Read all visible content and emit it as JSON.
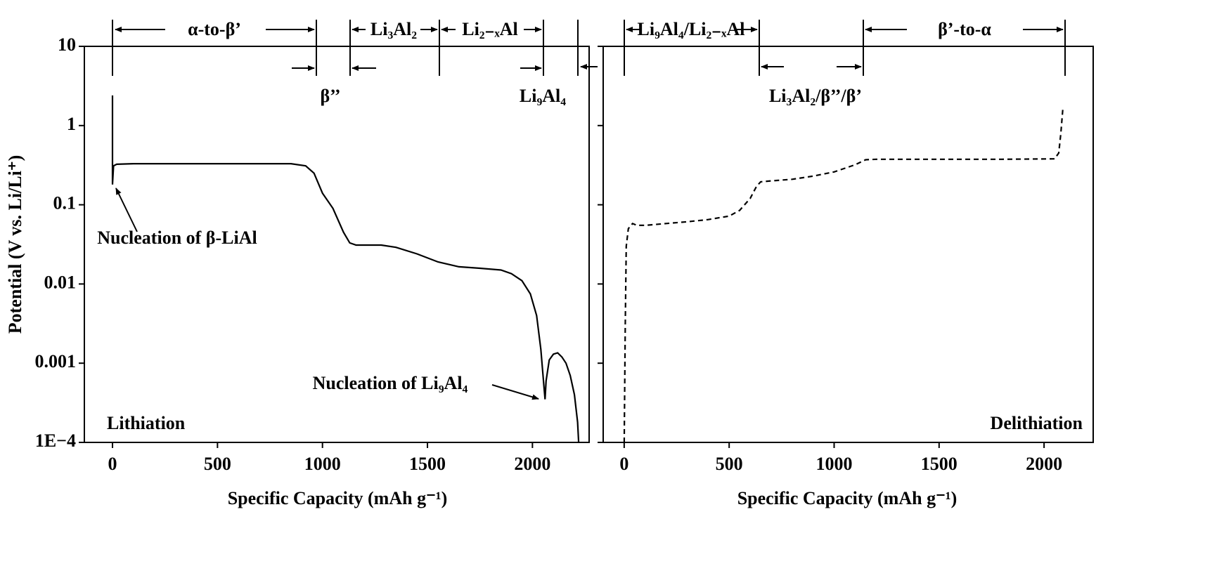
{
  "chart_data": [
    {
      "type": "line",
      "yscale": "log",
      "color": "#000000",
      "dashed": false,
      "y_label": "Potential (V vs. Li/Li⁺)",
      "x_label": "Specific Capacity (mAh g⁻¹)",
      "xlim": [
        -134,
        2270
      ],
      "xticks": [
        0,
        500,
        1000,
        1500,
        2000
      ],
      "ylim": [
        0.0001,
        10
      ],
      "yticks": [
        {
          "value": 0.0001,
          "label": "1E−4"
        },
        0.001,
        0.01,
        0.1,
        1,
        10
      ],
      "x": [
        0,
        0,
        5,
        20,
        100,
        300,
        500,
        700,
        850,
        920,
        960,
        1000,
        1050,
        1100,
        1130,
        1160,
        1200,
        1280,
        1350,
        1450,
        1550,
        1650,
        1750,
        1850,
        1900,
        1950,
        1990,
        2020,
        2040,
        2055,
        2060,
        2065,
        2080,
        2100,
        2120,
        2140,
        2160,
        2180,
        2200,
        2215,
        2220
      ],
      "values": [
        2.4,
        0.18,
        0.31,
        0.325,
        0.33,
        0.33,
        0.33,
        0.33,
        0.33,
        0.31,
        0.25,
        0.14,
        0.09,
        0.045,
        0.033,
        0.031,
        0.031,
        0.031,
        0.029,
        0.024,
        0.019,
        0.0165,
        0.0158,
        0.015,
        0.0135,
        0.011,
        0.0075,
        0.004,
        0.0015,
        0.0005,
        0.00035,
        0.0006,
        0.0011,
        0.0013,
        0.00135,
        0.0012,
        0.001,
        0.0007,
        0.0004,
        0.00018,
        0.0001
      ],
      "annotations": [
        "α-to-β’",
        "β’’",
        "Li₃Al₂",
        "Li₂₋ₓAl",
        "Li₉Al₄",
        "Nucleation of β-LiAl",
        "Nucleation of Li₉Al₄",
        "Lithiation"
      ]
    },
    {
      "type": "line",
      "yscale": "log",
      "color": "#000000",
      "dashed": true,
      "x_label": "Specific Capacity (mAh g⁻¹)",
      "xlim": [
        -100,
        2234
      ],
      "xticks": [
        0,
        500,
        1000,
        1500,
        2000
      ],
      "ylim": [
        0.0001,
        10
      ],
      "yticks": [
        0.0001,
        0.001,
        0.01,
        0.1,
        1,
        10
      ],
      "x": [
        0,
        5,
        10,
        20,
        40,
        60,
        100,
        200,
        300,
        400,
        500,
        550,
        600,
        630,
        650,
        700,
        800,
        900,
        1000,
        1100,
        1150,
        1200,
        1500,
        1800,
        2050,
        2070,
        2080,
        2090
      ],
      "values": [
        0.0001,
        0.003,
        0.03,
        0.05,
        0.058,
        0.055,
        0.055,
        0.058,
        0.061,
        0.065,
        0.072,
        0.085,
        0.12,
        0.17,
        0.195,
        0.2,
        0.21,
        0.23,
        0.26,
        0.32,
        0.37,
        0.375,
        0.375,
        0.375,
        0.38,
        0.45,
        0.8,
        1.7
      ],
      "annotations": [
        "Li₉Al₄/Li₂₋ₓAl",
        "β’-to-α",
        "Li₃Al₂/β’’/β’",
        "Delithiation"
      ]
    }
  ]
}
